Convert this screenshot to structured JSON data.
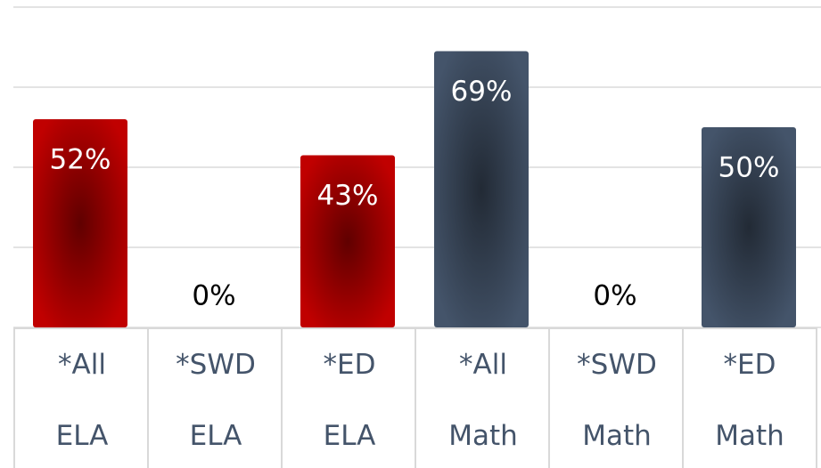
{
  "chart_data": {
    "type": "bar",
    "categories": [
      "*All ELA",
      "*SWD ELA",
      "*ED ELA",
      "*All Math",
      "*SWD Math",
      "*ED Math"
    ],
    "values": [
      52,
      0,
      43,
      69,
      0,
      50
    ],
    "value_labels": [
      "52%",
      "0%",
      "43%",
      "69%",
      "0%",
      "50%"
    ],
    "colors": [
      "#c00000",
      "#c00000",
      "#c00000",
      "#44546a",
      "#44546a",
      "#44546a"
    ],
    "ylim": [
      0,
      80
    ],
    "yticks": [
      0,
      20,
      40,
      60,
      80
    ],
    "grid": true
  }
}
